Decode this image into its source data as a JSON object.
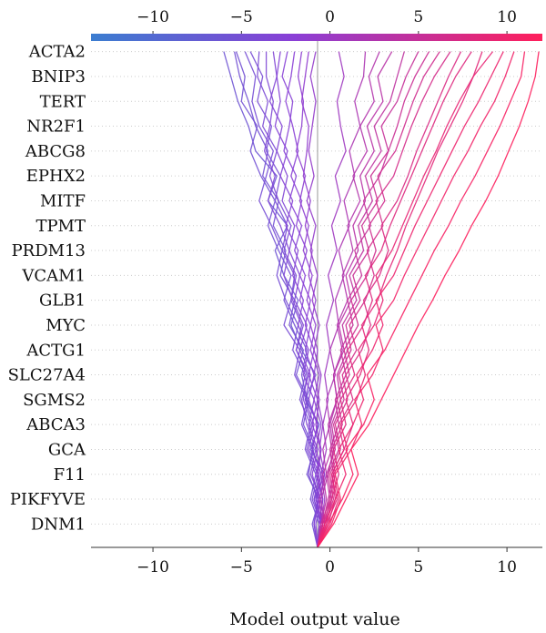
{
  "chart_data": {
    "type": "line",
    "subtype": "decision-plot",
    "xlabel": "Model output value",
    "features": [
      "ACTA2",
      "BNIP3",
      "TERT",
      "NR2F1",
      "ABCG8",
      "EPHX2",
      "MITF",
      "TPMT",
      "PRDM13",
      "VCAM1",
      "GLB1",
      "MYC",
      "ACTG1",
      "SLC27A4",
      "SGMS2",
      "ABCA3",
      "GCA",
      "F11",
      "PIKFYVE",
      "DNM1"
    ],
    "xlim": [
      -13.5,
      12
    ],
    "xticks": [
      -10,
      -5,
      0,
      5,
      10
    ],
    "xtick_labels": [
      "−10",
      "−5",
      "0",
      "5",
      "10"
    ],
    "base_value": -0.7,
    "colorscale": {
      "low": "#3b7dd0",
      "mid": "#8a3fd6",
      "high": "#ff1f5b"
    },
    "series": [
      {
        "values": [
          -0.7,
          -0.5,
          -0.9,
          -0.3,
          -1.1,
          -0.6,
          -1.4,
          -0.8,
          -1.6,
          -2.2,
          -1.8,
          -2.6,
          -3.1,
          -2.4,
          -3.5,
          -3.0,
          -4.2,
          -4.6,
          -5.2,
          -5.6,
          -6.0
        ]
      },
      {
        "values": [
          -0.7,
          -1.0,
          -0.6,
          -1.3,
          -0.9,
          -1.5,
          -1.2,
          -1.9,
          -1.5,
          -2.3,
          -2.0,
          -2.8,
          -2.5,
          -3.2,
          -2.9,
          -3.8,
          -3.5,
          -4.2,
          -4.6,
          -5.1,
          -5.4
        ]
      },
      {
        "values": [
          -0.7,
          -0.4,
          -0.8,
          -0.5,
          -1.0,
          -0.7,
          -1.3,
          -1.6,
          -1.3,
          -2.0,
          -2.6,
          -2.2,
          -2.9,
          -3.5,
          -3.1,
          -3.9,
          -4.5,
          -4.1,
          -5.0,
          -4.8,
          -5.3
        ]
      },
      {
        "values": [
          -0.7,
          -0.6,
          -1.1,
          -0.8,
          -1.4,
          -1.1,
          -1.7,
          -1.4,
          -2.1,
          -1.8,
          -2.5,
          -3.0,
          -2.7,
          -3.3,
          -4.0,
          -3.6,
          -3.2,
          -4.0,
          -4.4,
          -4.2,
          -4.8
        ]
      },
      {
        "values": [
          -0.7,
          -0.9,
          -0.7,
          -1.2,
          -1.0,
          -1.6,
          -1.3,
          -2.0,
          -1.7,
          -2.6,
          -2.2,
          -2.0,
          -2.7,
          -2.4,
          -3.1,
          -2.8,
          -3.6,
          -3.3,
          -4.1,
          -3.8,
          -4.5
        ]
      },
      {
        "values": [
          -0.7,
          -0.5,
          -1.0,
          -0.7,
          -1.3,
          -1.0,
          -1.5,
          -1.3,
          -1.9,
          -1.6,
          -2.2,
          -1.9,
          -2.6,
          -2.2,
          -2.9,
          -3.4,
          -3.0,
          -3.8,
          -3.5,
          -4.1,
          -4.0
        ]
      },
      {
        "values": [
          -0.7,
          -0.8,
          -0.5,
          -1.1,
          -0.8,
          -1.3,
          -1.6,
          -1.2,
          -1.9,
          -1.5,
          -2.1,
          -2.6,
          -2.3,
          -2.8,
          -3.5,
          -3.1,
          -3.7,
          -3.4,
          -3.2,
          -3.6,
          -3.6
        ]
      },
      {
        "values": [
          -0.7,
          -0.5,
          -0.9,
          -0.6,
          -1.2,
          -0.9,
          -1.4,
          -1.1,
          -1.7,
          -1.3,
          -2.0,
          -1.7,
          -2.3,
          -2.0,
          -2.7,
          -2.4,
          -3.0,
          -2.7,
          -3.4,
          -3.0,
          -3.2
        ]
      },
      {
        "values": [
          -0.7,
          -0.9,
          -0.6,
          -1.0,
          -0.7,
          -1.2,
          -0.9,
          -1.5,
          -1.2,
          -1.8,
          -1.5,
          -2.1,
          -1.8,
          -2.5,
          -2.1,
          -2.8,
          -2.4,
          -3.1,
          -2.8,
          -3.0,
          -2.8
        ]
      },
      {
        "values": [
          -0.7,
          -0.4,
          -0.8,
          -0.5,
          -1.0,
          -0.7,
          -1.2,
          -0.9,
          -1.4,
          -1.1,
          -1.7,
          -1.4,
          -2.0,
          -1.6,
          -2.3,
          -1.9,
          -2.6,
          -2.3,
          -2.1,
          -2.7,
          -2.4
        ]
      },
      {
        "values": [
          -0.7,
          -0.6,
          -0.4,
          -0.8,
          -0.5,
          -1.0,
          -0.7,
          -1.2,
          -0.9,
          -1.4,
          -1.1,
          -1.7,
          -1.3,
          -1.9,
          -1.6,
          -2.2,
          -1.8,
          -2.1,
          -2.5,
          -2.2,
          -2.0
        ]
      },
      {
        "values": [
          -0.7,
          -0.5,
          -0.7,
          -0.4,
          -0.8,
          -0.5,
          -0.9,
          -0.6,
          -1.1,
          -0.8,
          -1.3,
          -1.0,
          -1.5,
          -1.2,
          -1.7,
          -1.4,
          -1.9,
          -1.6,
          -1.5,
          -1.8,
          -1.6
        ]
      },
      {
        "values": [
          -0.7,
          -0.6,
          -0.4,
          -0.7,
          -0.5,
          -0.8,
          -0.6,
          -0.9,
          -0.7,
          -1.1,
          -0.8,
          -1.2,
          -1.0,
          -1.4,
          -1.1,
          -1.5,
          -1.3,
          -1.2,
          -1.6,
          -1.4,
          -1.2
        ]
      },
      {
        "values": [
          -0.7,
          -0.4,
          -0.6,
          -0.3,
          -0.6,
          -0.4,
          -0.7,
          -0.5,
          -0.9,
          -0.6,
          -1.0,
          -0.7,
          -1.1,
          -0.8,
          -1.3,
          -0.9,
          -1.2,
          -1.0,
          -0.8,
          -1.1,
          -0.8
        ]
      },
      {
        "values": [
          -0.7,
          -0.5,
          -0.3,
          -0.5,
          -0.2,
          -0.4,
          -0.1,
          -0.3,
          0.0,
          -0.2,
          0.2,
          -0.1,
          0.4,
          0.1,
          0.6,
          0.3,
          0.9,
          0.6,
          0.4,
          0.8,
          0.5
        ]
      },
      {
        "values": [
          -0.7,
          -0.4,
          -0.6,
          -0.2,
          -0.4,
          0.0,
          -0.2,
          0.3,
          0.0,
          0.5,
          0.3,
          0.8,
          0.5,
          1.1,
          0.8,
          1.4,
          1.1,
          1.7,
          1.4,
          1.9,
          2.0
        ]
      },
      {
        "values": [
          -0.7,
          -0.3,
          -0.5,
          -0.1,
          0.2,
          0.0,
          0.4,
          0.2,
          0.7,
          0.4,
          1.0,
          0.7,
          1.3,
          1.0,
          1.7,
          1.3,
          2.1,
          1.7,
          2.5,
          2.2,
          2.8
        ]
      },
      {
        "values": [
          -0.7,
          -0.5,
          -0.2,
          -0.4,
          0.1,
          -0.1,
          0.4,
          0.2,
          0.8,
          0.5,
          1.2,
          0.9,
          1.6,
          1.3,
          2.0,
          1.7,
          2.5,
          2.1,
          3.0,
          2.7,
          3.5
        ]
      },
      {
        "values": [
          -0.7,
          -0.3,
          0.0,
          -0.2,
          0.3,
          0.1,
          0.6,
          0.4,
          1.0,
          0.7,
          1.5,
          1.1,
          1.9,
          1.6,
          2.4,
          2.0,
          2.9,
          2.5,
          3.4,
          3.8,
          4.2
        ]
      },
      {
        "values": [
          -0.7,
          -0.4,
          -0.1,
          0.2,
          0.0,
          0.5,
          0.3,
          0.9,
          0.6,
          1.3,
          1.0,
          1.8,
          1.4,
          2.3,
          1.9,
          2.8,
          3.3,
          2.9,
          3.8,
          4.3,
          5.0
        ]
      },
      {
        "values": [
          -0.7,
          -0.2,
          0.1,
          -0.1,
          0.5,
          0.2,
          0.8,
          0.5,
          1.2,
          0.9,
          1.7,
          1.3,
          2.2,
          1.8,
          2.7,
          2.3,
          3.3,
          3.8,
          4.2,
          4.8,
          5.6
        ]
      },
      {
        "values": [
          -0.7,
          -0.5,
          0.0,
          0.3,
          0.1,
          0.7,
          0.4,
          1.1,
          0.8,
          1.6,
          1.2,
          2.1,
          2.6,
          2.2,
          3.1,
          2.7,
          3.7,
          4.2,
          4.7,
          5.3,
          6.2
        ]
      },
      {
        "values": [
          -0.7,
          -0.3,
          0.2,
          0.0,
          0.6,
          0.3,
          1.0,
          0.7,
          1.5,
          1.1,
          2.0,
          2.5,
          2.1,
          3.0,
          2.6,
          3.6,
          4.1,
          4.6,
          5.2,
          5.9,
          6.8
        ]
      },
      {
        "values": [
          -0.7,
          -0.1,
          0.3,
          0.1,
          0.8,
          0.5,
          1.3,
          0.9,
          1.8,
          2.3,
          1.9,
          2.8,
          3.3,
          2.9,
          3.8,
          4.4,
          4.9,
          5.5,
          6.1,
          6.7,
          7.4
        ]
      },
      {
        "values": [
          -0.7,
          -0.4,
          0.1,
          0.5,
          0.2,
          0.9,
          0.6,
          1.4,
          1.0,
          1.9,
          2.4,
          2.0,
          2.9,
          3.4,
          4.0,
          4.6,
          5.2,
          5.8,
          6.4,
          7.1,
          8.0
        ]
      },
      {
        "values": [
          -0.7,
          -0.2,
          0.4,
          0.1,
          0.8,
          1.3,
          0.9,
          1.7,
          2.2,
          1.8,
          2.7,
          3.2,
          3.8,
          4.3,
          4.9,
          5.5,
          6.1,
          6.8,
          7.5,
          8.1,
          8.6
        ]
      },
      {
        "values": [
          -0.7,
          0.0,
          0.5,
          0.2,
          1.0,
          0.6,
          1.5,
          2.0,
          1.6,
          2.5,
          3.0,
          2.6,
          3.5,
          4.1,
          4.7,
          5.3,
          6.0,
          6.6,
          7.3,
          8.1,
          9.2
        ]
      },
      {
        "values": [
          -0.7,
          -0.3,
          0.3,
          0.9,
          0.5,
          1.3,
          1.9,
          1.5,
          2.4,
          3.0,
          2.6,
          3.6,
          4.2,
          4.8,
          5.5,
          6.2,
          6.9,
          7.6,
          8.4,
          9.1,
          9.8
        ]
      },
      {
        "values": [
          -0.7,
          0.1,
          0.6,
          0.3,
          1.2,
          1.8,
          1.4,
          2.4,
          3.0,
          2.6,
          3.6,
          4.2,
          4.9,
          5.6,
          6.3,
          7.0,
          7.8,
          8.5,
          9.3,
          9.9,
          10.4
        ]
      },
      {
        "values": [
          -0.7,
          -0.1,
          0.7,
          1.3,
          0.9,
          1.9,
          2.5,
          2.1,
          3.1,
          3.8,
          4.5,
          5.2,
          5.9,
          6.7,
          7.4,
          8.2,
          8.9,
          9.6,
          10.2,
          10.8,
          11.0
        ]
      },
      {
        "values": [
          -0.7,
          0.2,
          0.9,
          1.6,
          1.2,
          2.2,
          2.9,
          3.6,
          4.3,
          5.0,
          5.8,
          6.5,
          7.3,
          8.0,
          8.8,
          9.5,
          10.1,
          10.7,
          11.2,
          11.6,
          11.8
        ]
      }
    ]
  }
}
